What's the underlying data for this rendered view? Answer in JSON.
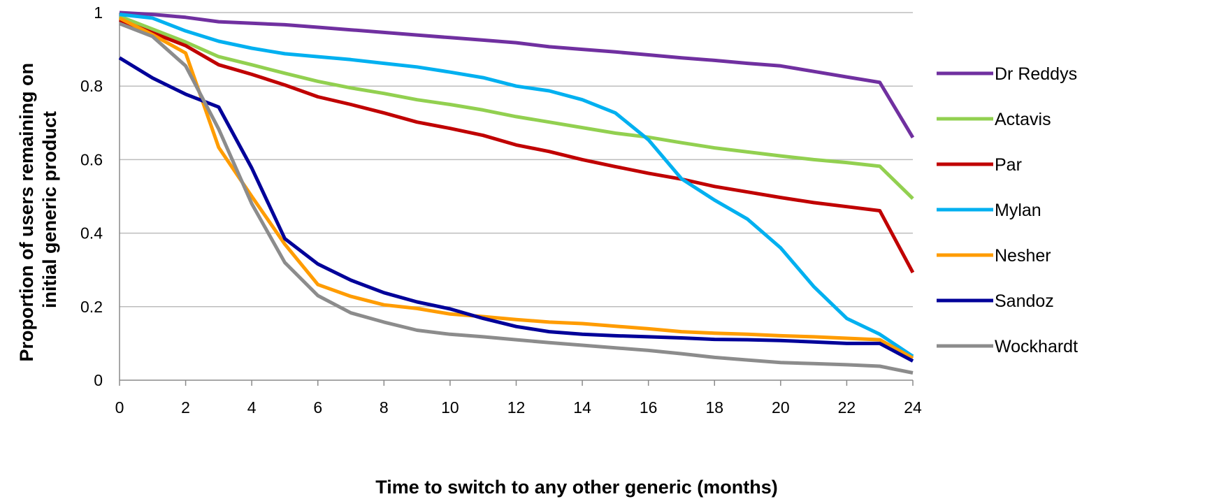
{
  "chart_data": {
    "type": "line",
    "xlabel": "Time to switch to any other generic (months)",
    "ylabel": "Proportion of users remaining on initial generic product",
    "ylabel_lines": [
      "Proportion of users remaining on",
      "initial generic product"
    ],
    "xlim": [
      0,
      24
    ],
    "ylim": [
      0,
      1
    ],
    "x_ticks": [
      "0",
      "2",
      "4",
      "6",
      "8",
      "10",
      "12",
      "14",
      "16",
      "18",
      "20",
      "22",
      "24"
    ],
    "y_ticks": [
      "0",
      "0.2",
      "0.4",
      "0.6",
      "0.8",
      "1"
    ],
    "grid": "horizontal",
    "legend_position": "right",
    "x": [
      0,
      1,
      2,
      3,
      4,
      5,
      6,
      7,
      8,
      9,
      10,
      11,
      12,
      13,
      14,
      15,
      16,
      17,
      18,
      19,
      20,
      21,
      22,
      23,
      24
    ],
    "series": [
      {
        "name": "Dr Reddys",
        "color": "#7030a0",
        "values": [
          1.0,
          0.995,
          0.987,
          0.975,
          0.971,
          0.967,
          0.96,
          0.953,
          0.946,
          0.939,
          0.932,
          0.925,
          0.918,
          0.907,
          0.9,
          0.893,
          0.885,
          0.877,
          0.87,
          0.862,
          0.855,
          0.84,
          0.825,
          0.81,
          0.66
        ]
      },
      {
        "name": "Actavis",
        "color": "#92d050",
        "values": [
          0.99,
          0.955,
          0.92,
          0.88,
          0.858,
          0.835,
          0.813,
          0.795,
          0.78,
          0.763,
          0.75,
          0.735,
          0.717,
          0.702,
          0.687,
          0.672,
          0.661,
          0.646,
          0.632,
          0.621,
          0.61,
          0.6,
          0.592,
          0.582,
          0.494
        ]
      },
      {
        "name": "Par",
        "color": "#c00000",
        "values": [
          0.98,
          0.945,
          0.91,
          0.858,
          0.832,
          0.803,
          0.771,
          0.75,
          0.727,
          0.702,
          0.685,
          0.666,
          0.64,
          0.622,
          0.6,
          0.581,
          0.563,
          0.547,
          0.527,
          0.512,
          0.497,
          0.483,
          0.472,
          0.461,
          0.293
        ]
      },
      {
        "name": "Mylan",
        "color": "#00b0f0",
        "values": [
          0.995,
          0.985,
          0.95,
          0.922,
          0.903,
          0.888,
          0.88,
          0.872,
          0.862,
          0.852,
          0.838,
          0.823,
          0.8,
          0.787,
          0.763,
          0.727,
          0.654,
          0.548,
          0.49,
          0.438,
          0.36,
          0.255,
          0.168,
          0.125,
          0.065
        ]
      },
      {
        "name": "Nesher",
        "color": "#ff9c00",
        "values": [
          0.985,
          0.94,
          0.89,
          0.633,
          0.5,
          0.37,
          0.26,
          0.228,
          0.205,
          0.195,
          0.18,
          0.173,
          0.165,
          0.158,
          0.154,
          0.147,
          0.14,
          0.132,
          0.128,
          0.125,
          0.121,
          0.118,
          0.114,
          0.11,
          0.06
        ]
      },
      {
        "name": "Sandoz",
        "color": "#000099",
        "values": [
          0.877,
          0.822,
          0.778,
          0.743,
          0.577,
          0.385,
          0.316,
          0.272,
          0.238,
          0.213,
          0.194,
          0.168,
          0.146,
          0.132,
          0.125,
          0.121,
          0.118,
          0.115,
          0.111,
          0.11,
          0.108,
          0.104,
          0.1,
          0.1,
          0.052
        ]
      },
      {
        "name": "Wockhardt",
        "color": "#8c8c8c",
        "values": [
          0.97,
          0.935,
          0.855,
          0.683,
          0.48,
          0.32,
          0.23,
          0.183,
          0.158,
          0.136,
          0.125,
          0.118,
          0.11,
          0.102,
          0.095,
          0.088,
          0.081,
          0.072,
          0.062,
          0.055,
          0.048,
          0.045,
          0.042,
          0.038,
          0.02
        ]
      }
    ]
  }
}
